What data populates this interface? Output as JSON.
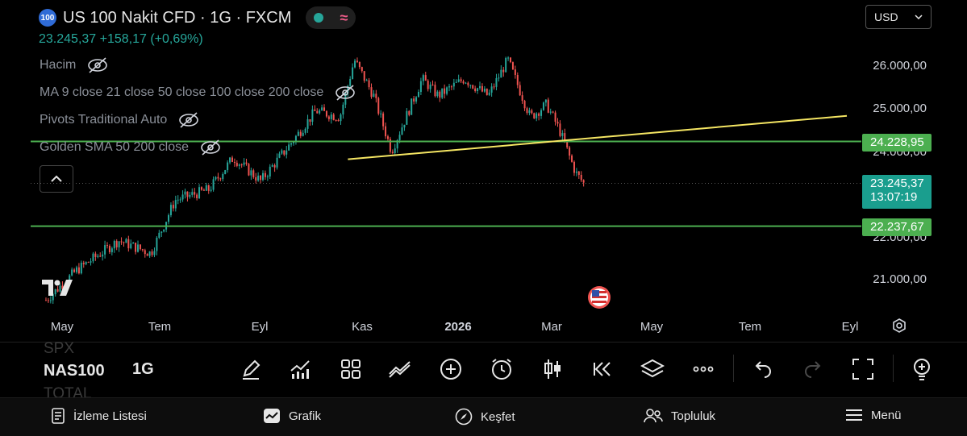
{
  "header": {
    "symbol_badge": "100",
    "title": "US 100 Nakit CFD · 1G · FXCM",
    "price_change": "23.245,37  +158,17 (+0,69%)"
  },
  "indicators": [
    {
      "label": "Hacim"
    },
    {
      "label": "MA 9 close 21 close 50 close 100 close 200 close"
    },
    {
      "label": "Pivots Traditional Auto"
    },
    {
      "label": "Golden SMA 50 200 close"
    }
  ],
  "currency": {
    "label": "USD"
  },
  "price_axis": {
    "ticks": [
      "26.000,00",
      "25.000,00",
      "24.000,00",
      "22.000,00",
      "21.000,00"
    ],
    "tags": {
      "upper_line": "24.228,95",
      "current_price": "23.245,37",
      "countdown": "13:07:19",
      "lower_line": "22.237,67"
    }
  },
  "time_axis": {
    "labels": [
      {
        "text": "May"
      },
      {
        "text": "Tem"
      },
      {
        "text": "Eyl"
      },
      {
        "text": "Kas"
      },
      {
        "text": "2026"
      },
      {
        "text": "Mar"
      },
      {
        "text": "May"
      },
      {
        "text": "Tem"
      },
      {
        "text": "Eyl"
      }
    ]
  },
  "toolbar": {
    "symbol_prev": "SPX",
    "symbol": "NAS100",
    "symbol_next": "TOTAL",
    "timeframe": "1G"
  },
  "bottom_nav": {
    "items": [
      {
        "label": "İzleme Listesi",
        "icon": "watchlist-icon"
      },
      {
        "label": "Grafik",
        "icon": "chart-icon"
      },
      {
        "label": "Keşfet",
        "icon": "compass-icon"
      },
      {
        "label": "Topluluk",
        "icon": "people-icon"
      },
      {
        "label": "Menü",
        "icon": "menu-icon"
      }
    ]
  },
  "colors": {
    "up": "#26a69a",
    "down": "#ef5350",
    "trendline": "#f5e663",
    "horizontal_line": "#4caf50",
    "background": "#000000"
  },
  "chart_data": {
    "type": "candlestick",
    "price_range": [
      20400,
      26400
    ],
    "horizontal_lines": [
      24228.95,
      22237.67
    ],
    "trendline": {
      "start": {
        "date": "2025-10-25",
        "price": 23810
      },
      "end": {
        "date": "2026-08-30",
        "price": 24830
      }
    },
    "last_price": 23245.37,
    "keypoints": [
      {
        "date": "2025-04-21",
        "price": 20500
      },
      {
        "date": "2025-05-10",
        "price": 21200
      },
      {
        "date": "2025-06-05",
        "price": 21900
      },
      {
        "date": "2025-06-25",
        "price": 21600
      },
      {
        "date": "2025-07-10",
        "price": 22850
      },
      {
        "date": "2025-07-31",
        "price": 23100
      },
      {
        "date": "2025-08-15",
        "price": 23850
      },
      {
        "date": "2025-09-01",
        "price": 23300
      },
      {
        "date": "2025-09-20",
        "price": 24200
      },
      {
        "date": "2025-10-05",
        "price": 24950
      },
      {
        "date": "2025-10-20",
        "price": 24800
      },
      {
        "date": "2025-10-29",
        "price": 26150
      },
      {
        "date": "2025-11-10",
        "price": 25300
      },
      {
        "date": "2025-11-21",
        "price": 24000
      },
      {
        "date": "2025-12-10",
        "price": 25700
      },
      {
        "date": "2025-12-20",
        "price": 25300
      },
      {
        "date": "2026-01-05",
        "price": 25700
      },
      {
        "date": "2026-01-20",
        "price": 25300
      },
      {
        "date": "2026-02-01",
        "price": 26150
      },
      {
        "date": "2026-02-15",
        "price": 24800
      },
      {
        "date": "2026-02-25",
        "price": 25100
      },
      {
        "date": "2026-03-05",
        "price": 24500
      },
      {
        "date": "2026-03-15",
        "price": 23500
      },
      {
        "date": "2026-03-20",
        "price": 23245
      }
    ]
  }
}
